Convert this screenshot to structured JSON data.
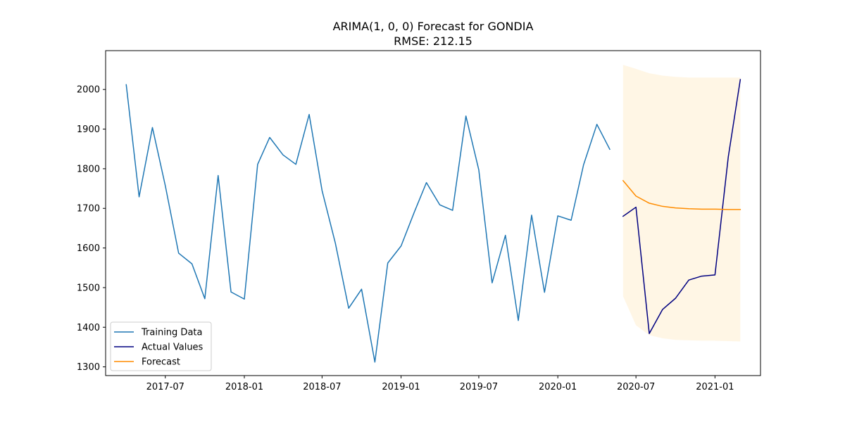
{
  "chart_data": {
    "type": "line",
    "title": "ARIMA(1, 0, 0) Forecast for GONDIA",
    "subtitle": "RMSE: 212.15",
    "xlabel": "",
    "ylabel": "",
    "x_axis": {
      "type": "date",
      "range": [
        "2017-02-12",
        "2021-04-17"
      ],
      "ticks": [
        {
          "date": "2017-07-01",
          "label": "2017-07"
        },
        {
          "date": "2018-01-01",
          "label": "2018-01"
        },
        {
          "date": "2018-07-01",
          "label": "2018-07"
        },
        {
          "date": "2019-01-01",
          "label": "2019-01"
        },
        {
          "date": "2019-07-01",
          "label": "2019-07"
        },
        {
          "date": "2020-01-01",
          "label": "2020-01"
        },
        {
          "date": "2020-07-01",
          "label": "2020-07"
        },
        {
          "date": "2021-01-01",
          "label": "2021-01"
        }
      ]
    },
    "y_axis": {
      "range": [
        1278,
        2098
      ],
      "ticks": [
        1300,
        1400,
        1500,
        1600,
        1700,
        1800,
        1900,
        2000
      ]
    },
    "grid": false,
    "legend": {
      "placement": "bottom-left",
      "entries": [
        {
          "series": "training",
          "label": "Training Data",
          "color": "#1f77b4"
        },
        {
          "series": "actual",
          "label": "Actual Values",
          "color": "#000080"
        },
        {
          "series": "forecast",
          "label": "Forecast",
          "color": "#ff8c00"
        }
      ]
    },
    "series": [
      {
        "id": "training",
        "name": "Training Data",
        "color": "#1f77b4",
        "x": [
          "2017-04-01",
          "2017-05-01",
          "2017-06-01",
          "2017-07-01",
          "2017-08-01",
          "2017-09-01",
          "2017-10-01",
          "2017-11-01",
          "2017-12-01",
          "2018-01-01",
          "2018-02-01",
          "2018-03-01",
          "2018-04-01",
          "2018-05-01",
          "2018-06-01",
          "2018-07-01",
          "2018-08-01",
          "2018-09-01",
          "2018-10-01",
          "2018-11-01",
          "2018-12-01",
          "2019-01-01",
          "2019-02-01",
          "2019-03-01",
          "2019-04-01",
          "2019-05-01",
          "2019-06-01",
          "2019-07-01",
          "2019-08-01",
          "2019-09-01",
          "2019-10-01",
          "2019-11-01",
          "2019-12-01",
          "2020-01-01",
          "2020-02-01",
          "2020-03-01",
          "2020-04-01",
          "2020-05-01"
        ],
        "y": [
          2012,
          1729,
          1904,
          1757,
          1587,
          1560,
          1472,
          1783,
          1489,
          1471,
          1811,
          1879,
          1835,
          1811,
          1937,
          1745,
          1612,
          1448,
          1496,
          1312,
          1562,
          1605,
          1691,
          1765,
          1709,
          1695,
          1933,
          1797,
          1512,
          1632,
          1417,
          1683,
          1488,
          1681,
          1670,
          1810,
          1912,
          1849
        ]
      },
      {
        "id": "actual",
        "name": "Actual Values",
        "color": "#000080",
        "x": [
          "2020-06-01",
          "2020-07-01",
          "2020-08-01",
          "2020-09-01",
          "2020-10-01",
          "2020-11-01",
          "2020-12-01",
          "2021-01-01",
          "2021-02-01",
          "2021-03-01"
        ],
        "y": [
          1680,
          1703,
          1384,
          1445,
          1473,
          1519,
          1529,
          1532,
          1830,
          2025
        ]
      },
      {
        "id": "forecast",
        "name": "Forecast",
        "color": "#ff8c00",
        "x": [
          "2020-06-01",
          "2020-07-01",
          "2020-08-01",
          "2020-09-01",
          "2020-10-01",
          "2020-11-01",
          "2020-12-01",
          "2021-01-01",
          "2021-02-01",
          "2021-03-01"
        ],
        "y": [
          1770,
          1731,
          1713,
          1705,
          1701,
          1699,
          1698,
          1698,
          1697,
          1697
        ]
      }
    ],
    "confidence_band": {
      "series": "forecast",
      "color": "#ffa500",
      "opacity": 0.1,
      "x": [
        "2020-06-01",
        "2020-07-01",
        "2020-08-01",
        "2020-09-01",
        "2020-10-01",
        "2020-11-01",
        "2020-12-01",
        "2021-01-01",
        "2021-02-01",
        "2021-03-01"
      ],
      "upper": [
        2062,
        2052,
        2041,
        2035,
        2032,
        2030,
        2030,
        2030,
        2030,
        2030
      ],
      "lower": [
        1478,
        1405,
        1380,
        1372,
        1368,
        1367,
        1366,
        1366,
        1365,
        1364
      ]
    }
  }
}
